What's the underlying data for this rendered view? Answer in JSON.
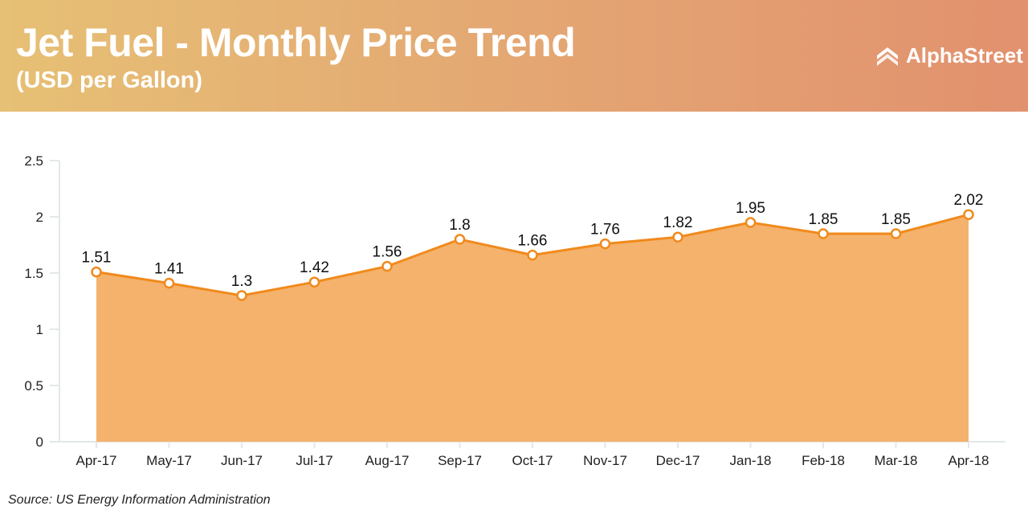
{
  "header": {
    "title": "Jet Fuel - Monthly Price Trend",
    "subtitle": "(USD per Gallon)",
    "logo": "AlphaStreet"
  },
  "source": "Source: US Energy Information Administration",
  "colors": {
    "line": "#f08a1c",
    "fill": "#f4b26c",
    "axis": "#e3e8ea"
  },
  "chart_data": {
    "type": "area",
    "title": "Jet Fuel - Monthly Price Trend",
    "ylabel": "USD per Gallon",
    "categories": [
      "Apr-17",
      "May-17",
      "Jun-17",
      "Jul-17",
      "Aug-17",
      "Sep-17",
      "Oct-17",
      "Nov-17",
      "Dec-17",
      "Jan-18",
      "Feb-18",
      "Mar-18",
      "Apr-18"
    ],
    "values": [
      1.51,
      1.41,
      1.3,
      1.42,
      1.56,
      1.8,
      1.66,
      1.76,
      1.82,
      1.95,
      1.85,
      1.85,
      2.02
    ],
    "yticks": [
      "0",
      "0.5",
      "1",
      "1.5",
      "2",
      "2.5"
    ],
    "ylim": [
      0,
      2.5
    ],
    "grid": false
  }
}
